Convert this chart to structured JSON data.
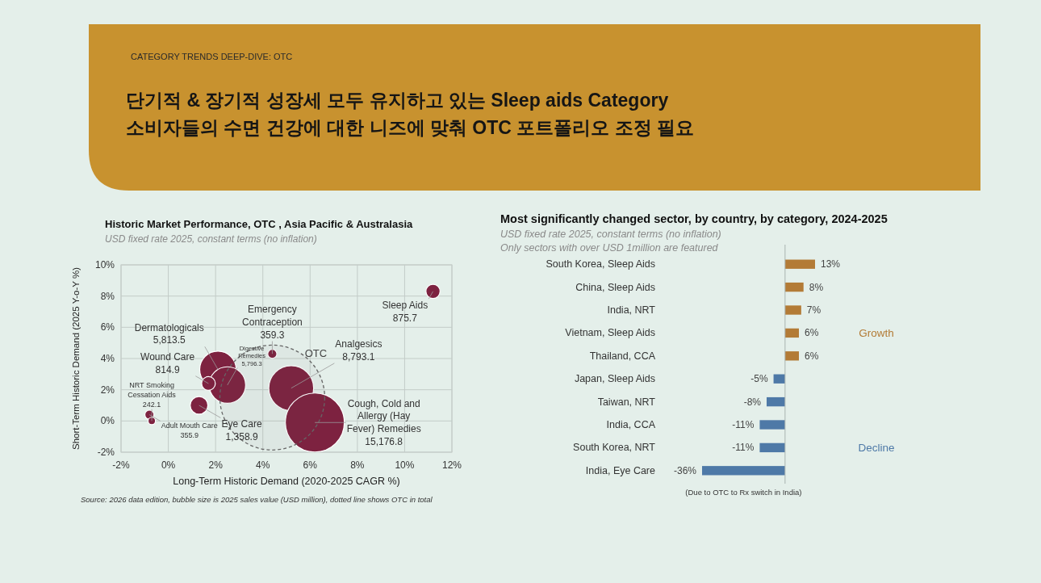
{
  "chart_data": [
    {
      "type": "other",
      "title": "단기적 & 장기적 성장세 모두 유지하고 있는 Sleep aids Category\n소비자들의 수면 건강에 대한 니즈에 맞춰 OTC 포트폴리오 조정 필요",
      "annotations": [
        "CATEGORY TRENDS DEEP-DIVE: OTC"
      ]
    },
    {
      "type": "bubble",
      "title": "Historic Market Performance, OTC , Asia Pacific & Australasia",
      "subtitle": "USD fixed rate 2025, constant terms (no inflation)",
      "xlabel": "Long-Term Historic Demand (2020-2025 CAGR %)",
      "ylabel": "Short-Term Historic Demand (2025 Y-o-Y %)",
      "xlim": [
        -2,
        12
      ],
      "ylim": [
        -2,
        10
      ],
      "xticks": [
        {
          "value": -2,
          "label": "-2%"
        },
        {
          "value": 0,
          "label": "0%"
        },
        {
          "value": 2,
          "label": "2%"
        },
        {
          "value": 4,
          "label": "4%"
        },
        {
          "value": 6,
          "label": "6%"
        },
        {
          "value": 8,
          "label": "8%"
        },
        {
          "value": 10,
          "label": "10%"
        },
        {
          "value": 12,
          "label": "12%"
        }
      ],
      "yticks": [
        {
          "value": -2,
          "label": "-2%"
        },
        {
          "value": 0,
          "label": "0%"
        },
        {
          "value": 2,
          "label": "2%"
        },
        {
          "value": 4,
          "label": "4%"
        },
        {
          "value": 6,
          "label": "6%"
        },
        {
          "value": 8,
          "label": "8%"
        },
        {
          "value": 10,
          "label": "10%"
        }
      ],
      "grid": true,
      "series": [
        {
          "color": "#7d2240",
          "x": [
            11.2,
            2.1,
            2.5,
            1.7,
            4.4,
            5.2,
            6.2,
            1.3,
            -0.8,
            -0.7
          ],
          "values": [
            8.3,
            3.3,
            2.3,
            2.4,
            4.3,
            2.1,
            -0.1,
            1.0,
            0.4,
            0.0
          ],
          "sizes": [
            0.0182,
            0.121,
            0.121,
            0.017,
            0.0075,
            0.183,
            0.316,
            0.0283,
            0.0074,
            0.005
          ]
        },
        {
          "name": "OTC",
          "color": "#666666",
          "line_style": "dashed",
          "x": [
            4.4
          ],
          "values": [
            1.5
          ],
          "sizes": [
            1
          ]
        }
      ],
      "annotations": [
        {
          "text": "Sleep Aids\n875.7",
          "x": 11.2,
          "y": 8.3
        },
        {
          "text": "Dermatologicals\n5,813.5",
          "x": 2.1,
          "y": 3.3
        },
        {
          "text": "Emergency\nContraception\n359.3",
          "x": 4.4,
          "y": 4.3
        },
        {
          "text": "Analgesics\n8,793.1",
          "x": 5.2,
          "y": 2.1
        },
        {
          "text": "Cough, Cold and\nAllergy (Hay\nFever) Remedies\n15,176.8",
          "x": 6.2,
          "y": -0.1
        },
        {
          "text": "Digestive\nRemedies\n5,796.3",
          "x": 2.5,
          "y": 2.3
        },
        {
          "text": "Wound Care\n814.9",
          "x": 1.7,
          "y": 2.4
        },
        {
          "text": "Adult Mouth Care\n355.9",
          "x": -0.8,
          "y": 0.4
        },
        {
          "text": "NRT Smoking\nCessation Aids\n242.1",
          "x": -0.7,
          "y": 0.0
        },
        {
          "text": "Eye Care\n1,358.9",
          "x": 1.3,
          "y": 1.0
        },
        "Source: 2026 data edition, bubble size is 2025 sales value (USD million), dotted line shows OTC in total"
      ]
    },
    {
      "type": "bar",
      "orientation": "horizontal",
      "title": "Most significantly changed sector, by country, by category, 2024-2025",
      "subtitle": "USD fixed rate 2025, constant terms (no inflation)\nOnly sectors with over USD 1million are featured",
      "categories": [
        "South Korea, Sleep Aids",
        "China, Sleep Aids",
        "India, NRT",
        "Vietnam, Sleep Aids",
        "Thailand, CCA",
        "Japan, Sleep Aids",
        "Taiwan, NRT",
        "India, CCA",
        "South Korea, NRT",
        "India, Eye Care"
      ],
      "series": [
        {
          "name": "Growth",
          "color": "#b37b36",
          "values": [
            13,
            8,
            7,
            6,
            6,
            null,
            null,
            null,
            null,
            null
          ],
          "value_labels": [
            "13%",
            "8%",
            "7%",
            "6%",
            "6%",
            null,
            null,
            null,
            null,
            null
          ]
        },
        {
          "name": "Decline",
          "color": "#4e79a7",
          "values": [
            null,
            null,
            null,
            null,
            null,
            -5,
            -8,
            -11,
            -11,
            -36
          ],
          "value_labels": [
            null,
            null,
            null,
            null,
            null,
            "-5%",
            "-8%",
            "-11%",
            "-11%",
            "-36%"
          ]
        }
      ],
      "annotations": [
        "(Due to OTC to Rx switch in India)"
      ]
    }
  ]
}
